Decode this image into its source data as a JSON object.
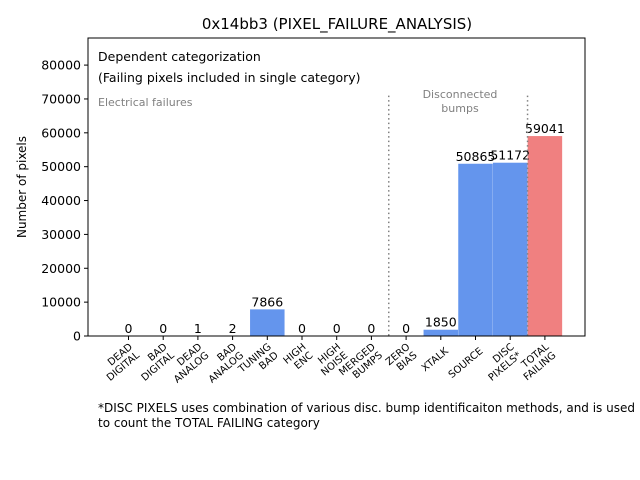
{
  "chart_data": {
    "type": "bar",
    "title": "0x14bb3 (PIXEL_FAILURE_ANALYSIS)",
    "xlabel": "",
    "ylabel": "Number of pixels",
    "ylim": [
      0,
      88000
    ],
    "yticks": [
      0,
      10000,
      20000,
      30000,
      40000,
      50000,
      60000,
      70000,
      80000
    ],
    "categories": [
      [
        "DEAD",
        "DIGITAL"
      ],
      [
        "BAD",
        "DIGITAL"
      ],
      [
        "DEAD",
        "ANALOG"
      ],
      [
        "BAD",
        "ANALOG"
      ],
      [
        "TUNING",
        "BAD"
      ],
      [
        "HIGH",
        "ENC"
      ],
      [
        "HIGH",
        "NOISE"
      ],
      [
        "MERGED",
        "BUMPS"
      ],
      [
        "ZERO",
        "BIAS"
      ],
      [
        "XTALK"
      ],
      [
        "SOURCE"
      ],
      [
        "DISC",
        "PIXELS*"
      ],
      [
        "TOTAL",
        "FAILING"
      ]
    ],
    "values": [
      0,
      0,
      1,
      2,
      7866,
      0,
      0,
      0,
      0,
      1850,
      50865,
      51172,
      59041
    ],
    "value_labels": [
      "0",
      "0",
      "1",
      "2",
      "7866",
      "0",
      "0",
      "0",
      "0",
      "1850",
      "50865",
      "51172",
      "59041"
    ],
    "bar_colors": [
      "#6495ed",
      "#6495ed",
      "#6495ed",
      "#6495ed",
      "#6495ed",
      "#6495ed",
      "#6495ed",
      "#6495ed",
      "#6495ed",
      "#6495ed",
      "#6495ed",
      "#6495ed",
      "#f08080"
    ],
    "dividers_after": [
      7,
      11
    ],
    "divider_top": 71000,
    "annotations": {
      "line1": "Dependent categorization",
      "line2": "(Failing pixels included in single category)",
      "electrical": "Electrical failures",
      "disconnected": [
        "Disconnected",
        "bumps"
      ]
    },
    "footnote": "*DISC PIXELS uses combination of various disc. bump identificaiton methods, and is used to count the TOTAL FAILING category"
  }
}
